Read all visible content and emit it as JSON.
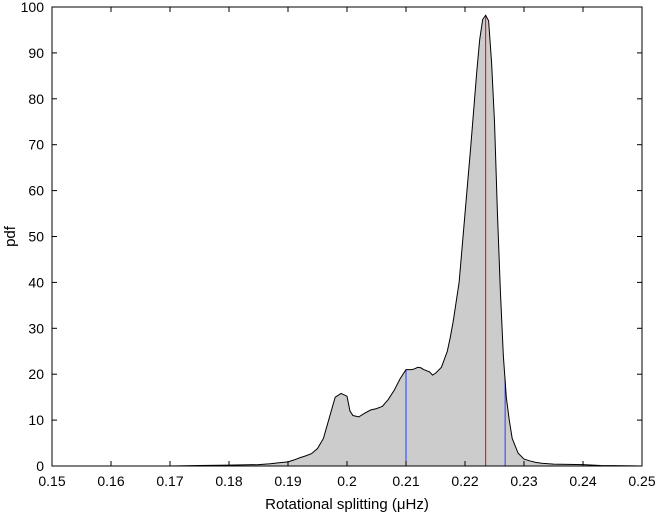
{
  "chart_data": {
    "type": "area",
    "title": "",
    "xlabel": "Rotational splitting (μHz)",
    "ylabel": "pdf",
    "xlim": [
      0.15,
      0.25
    ],
    "ylim": [
      0,
      100
    ],
    "xticks": [
      0.15,
      0.16,
      0.17,
      0.18,
      0.19,
      0.2,
      0.21,
      0.22,
      0.23,
      0.24,
      0.25
    ],
    "xtick_labels": [
      "0.15",
      "0.16",
      "0.17",
      "0.18",
      "0.19",
      "0.2",
      "0.21",
      "0.22",
      "0.23",
      "0.24",
      "0.25"
    ],
    "yticks": [
      0,
      10,
      20,
      30,
      40,
      50,
      60,
      70,
      80,
      90,
      100
    ],
    "ytick_labels": [
      "0",
      "10",
      "20",
      "30",
      "40",
      "50",
      "60",
      "70",
      "80",
      "90",
      "100"
    ],
    "grid": false,
    "legend": "none",
    "colors": {
      "fill": "#cccccc",
      "outline": "#000000",
      "median": "#e8000b",
      "interval": "#1f3fff"
    },
    "series": [
      {
        "x": [
          0.15,
          0.17,
          0.175,
          0.18,
          0.185,
          0.187,
          0.1885,
          0.19,
          0.191,
          0.192,
          0.193,
          0.194,
          0.195,
          0.196,
          0.197,
          0.198,
          0.199,
          0.2,
          0.2005,
          0.201,
          0.202,
          0.203,
          0.204,
          0.205,
          0.206,
          0.207,
          0.208,
          0.209,
          0.21,
          0.211,
          0.2115,
          0.212,
          0.2125,
          0.213,
          0.214,
          0.2145,
          0.215,
          0.216,
          0.217,
          0.2175,
          0.218,
          0.219,
          0.22,
          0.221,
          0.222,
          0.2225,
          0.223,
          0.2235,
          0.224,
          0.2245,
          0.225,
          0.2255,
          0.226,
          0.2265,
          0.227,
          0.2275,
          0.228,
          0.229,
          0.23,
          0.231,
          0.232,
          0.233,
          0.235,
          0.24,
          0.243,
          0.25
        ],
        "y": [
          0,
          0,
          0.1,
          0.2,
          0.3,
          0.5,
          0.7,
          0.9,
          1.3,
          1.8,
          2.2,
          2.7,
          3.8,
          6.0,
          10.5,
          15.0,
          15.8,
          15.2,
          12.0,
          11.0,
          10.7,
          11.5,
          12.2,
          12.5,
          13.0,
          14.5,
          16.5,
          19.0,
          21.0,
          21.0,
          21.2,
          21.5,
          21.4,
          21.0,
          20.5,
          19.8,
          20.2,
          21.5,
          25.0,
          28.0,
          31.5,
          40.0,
          55.0,
          70.0,
          86.0,
          93.0,
          97.3,
          98.2,
          97.0,
          88.0,
          75.0,
          55.0,
          38.0,
          24.0,
          15.0,
          10.0,
          6.0,
          2.8,
          1.5,
          1.1,
          0.8,
          0.6,
          0.4,
          0.3,
          0.1,
          0
        ]
      }
    ],
    "vertical_lines": [
      {
        "x": 0.2235,
        "y_top": 98.2,
        "color": "#e8000b"
      },
      {
        "x": 0.21,
        "y_top": 21.0,
        "color": "#1f3fff"
      },
      {
        "x": 0.2268,
        "y_top": 19.0,
        "color": "#1f3fff"
      }
    ]
  }
}
